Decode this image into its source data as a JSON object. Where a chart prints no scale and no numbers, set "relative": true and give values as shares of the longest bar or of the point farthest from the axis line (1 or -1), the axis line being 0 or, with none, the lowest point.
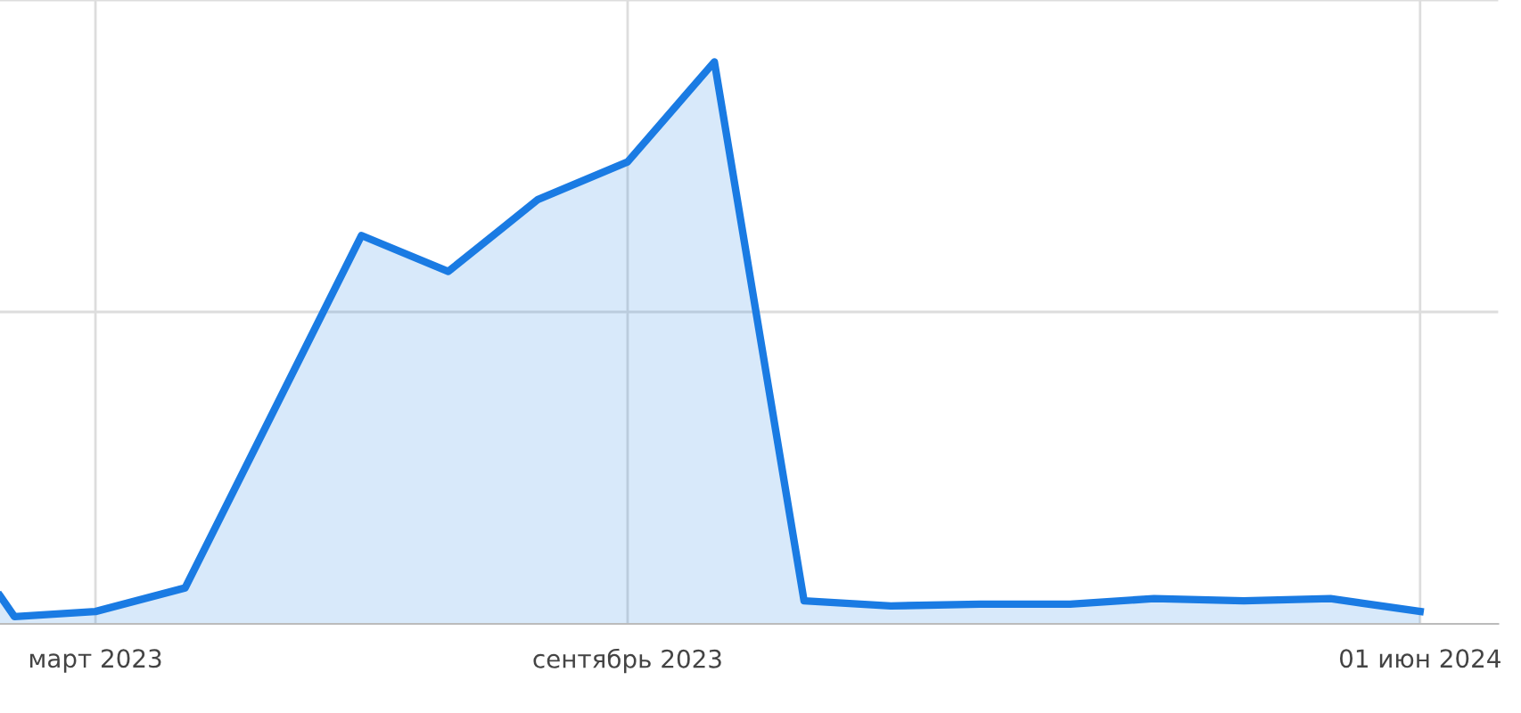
{
  "chart_data": {
    "type": "area",
    "relative": true,
    "x": [
      "2023-01-27",
      "2023-02-01",
      "2023-03-01",
      "2023-04-01",
      "2023-05-01",
      "2023-06-01",
      "2023-07-01",
      "2023-08-01",
      "2023-09-01",
      "2023-10-01",
      "2023-11-01",
      "2023-12-01",
      "2024-01-01",
      "2024-02-01",
      "2024-03-01",
      "2024-04-01",
      "2024-05-01",
      "2024-06-01"
    ],
    "series": [
      {
        "color": "#1a7be3",
        "values": [
          0.05,
          0.013,
          0.022,
          0.064,
          null,
          0.691,
          0.627,
          0.755,
          0.822,
          1.0,
          0.041,
          0.032,
          0.035,
          0.035,
          0.045,
          0.041,
          0.045,
          0.022
        ]
      }
    ],
    "xlim": [
      "2023-01-27",
      "2024-06-28"
    ],
    "xticks": [
      {
        "value": "2023-03-01",
        "label": "март 2023"
      },
      {
        "value": "2023-09-01",
        "label": "сентябрь 2023"
      },
      {
        "value": "2024-06-01",
        "label": "01 июн 2024"
      }
    ],
    "grid": true,
    "marker": "none",
    "line_style": "solid",
    "legend": false
  }
}
